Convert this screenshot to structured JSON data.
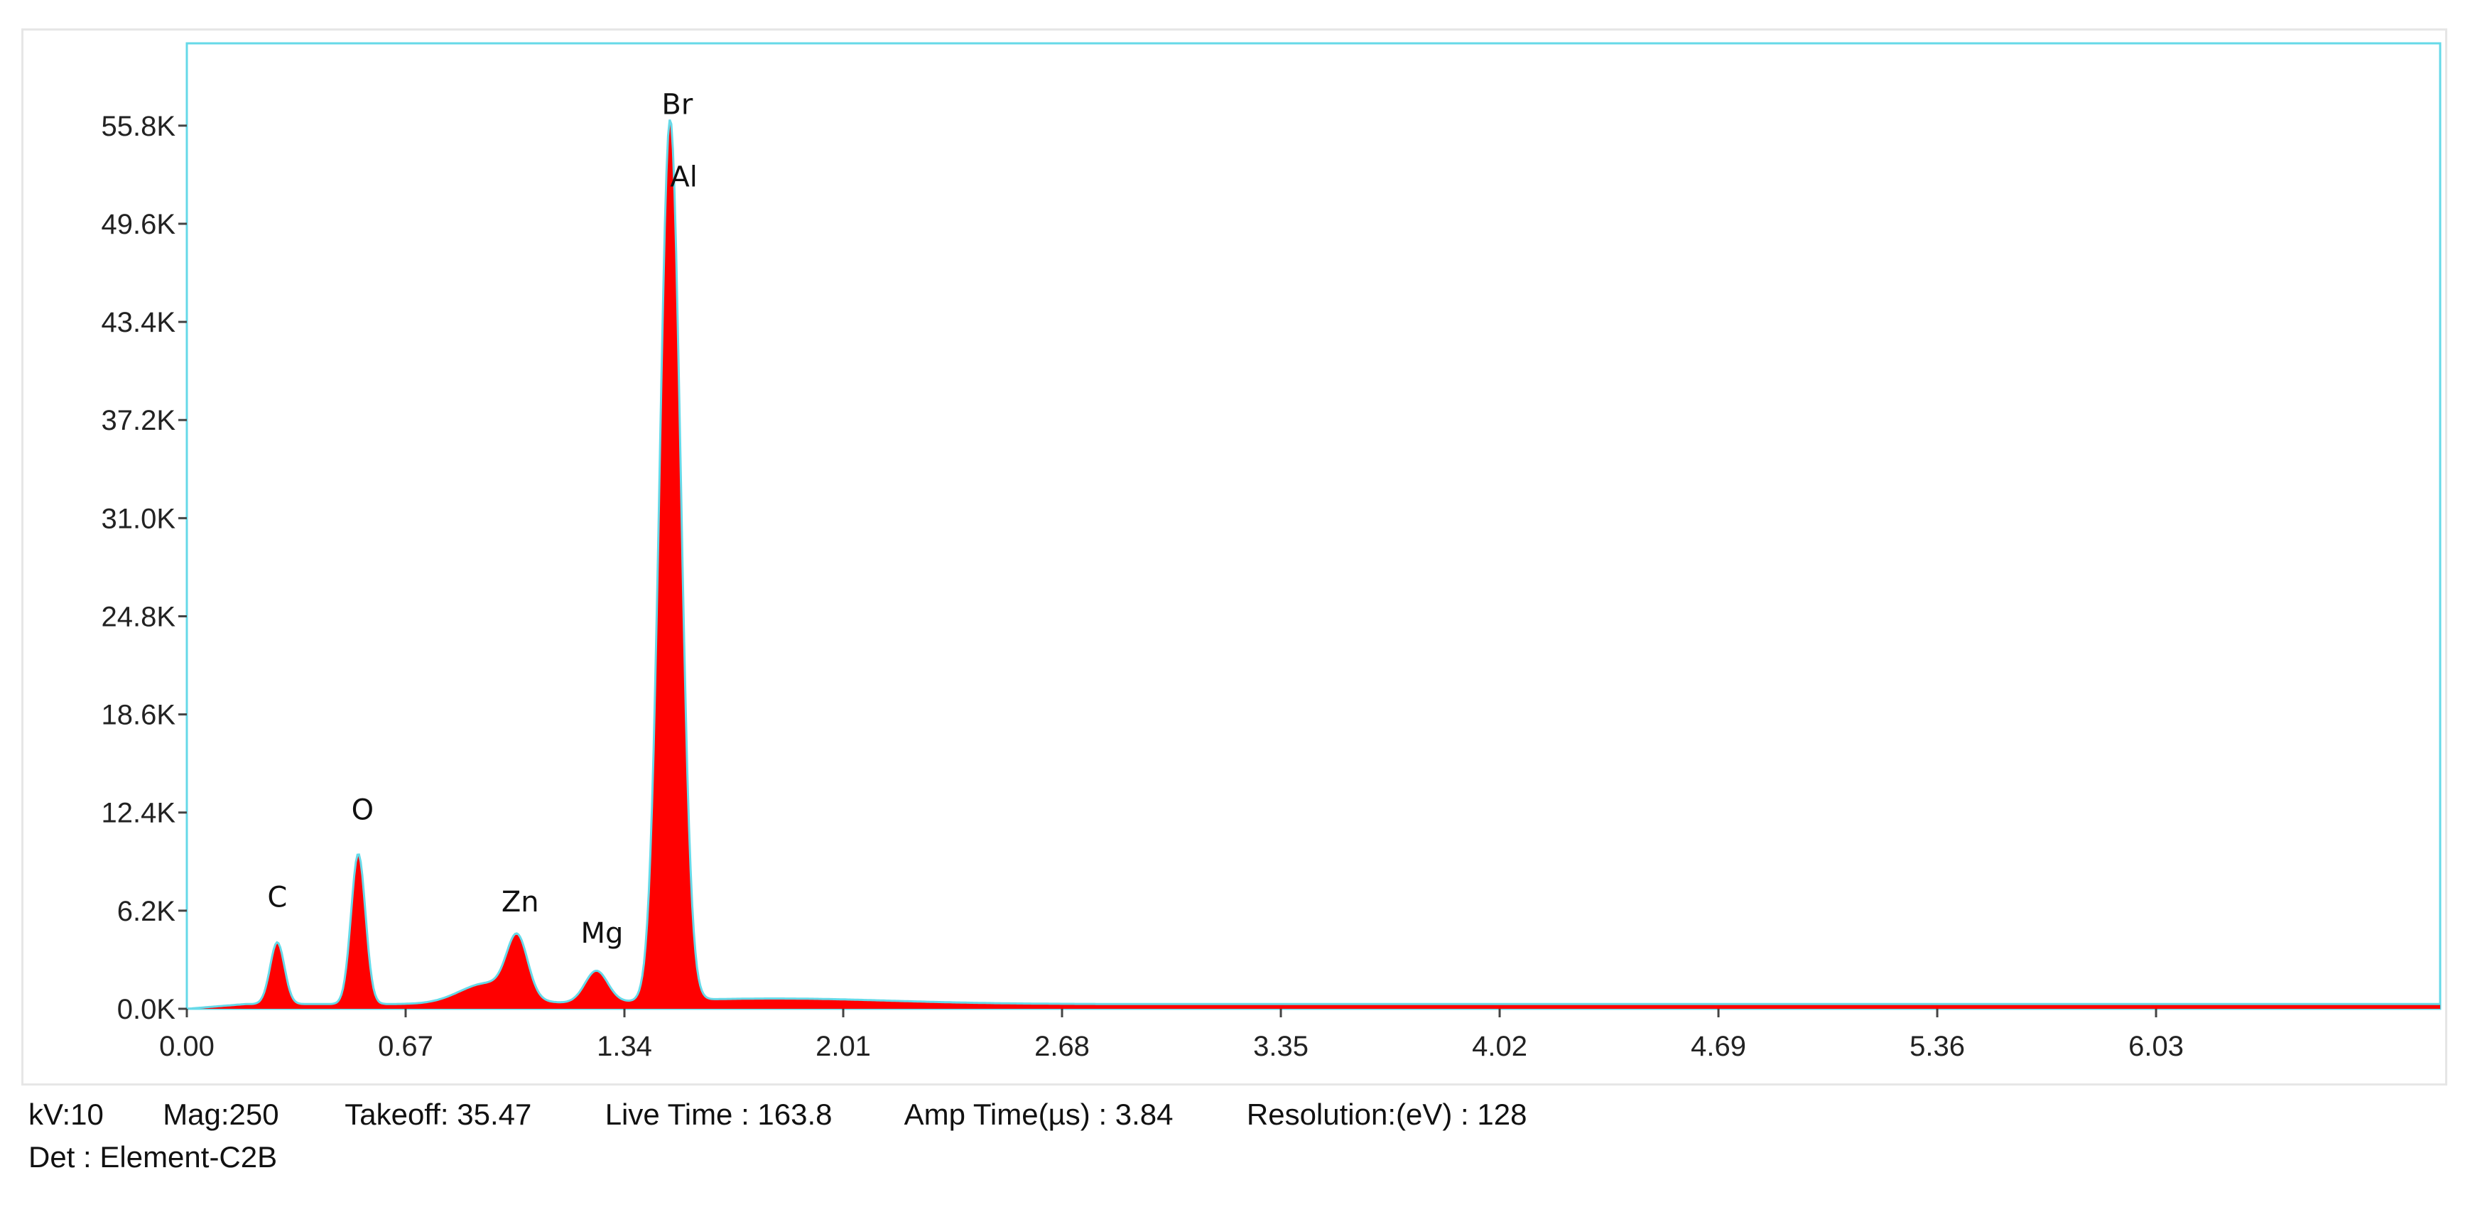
{
  "chart_data": {
    "type": "area",
    "title": "",
    "xlabel": "",
    "ylabel": "",
    "xlim": [
      0,
      6.9
    ],
    "ylim": [
      0,
      61000
    ],
    "x_ticks": [
      "0.00",
      "0.67",
      "1.34",
      "2.01",
      "2.68",
      "3.35",
      "4.02",
      "4.69",
      "5.36",
      "6.03"
    ],
    "x_tick_values": [
      0.0,
      0.67,
      1.34,
      2.01,
      2.68,
      3.35,
      4.02,
      4.69,
      5.36,
      6.03
    ],
    "y_ticks": [
      "0.0K",
      "6.2K",
      "12.4K",
      "18.6K",
      "24.8K",
      "31.0K",
      "37.2K",
      "43.4K",
      "49.6K",
      "55.8K"
    ],
    "y_tick_values": [
      0,
      6200,
      12400,
      18600,
      24800,
      31000,
      37200,
      43400,
      49600,
      55800
    ],
    "fill_color": "#ff0000",
    "outline_color": "#66d9e8",
    "baseline_counts": 300,
    "peaks": [
      {
        "label": "C",
        "x": 0.277,
        "y": 4200,
        "width": 0.022
      },
      {
        "label": "O",
        "x": 0.525,
        "y": 9800,
        "width": 0.022
      },
      {
        "label": "Zn",
        "x": 1.012,
        "y": 4000,
        "width": 0.032
      },
      {
        "label": "Mg",
        "x": 1.254,
        "y": 2300,
        "width": 0.035
      },
      {
        "label": "Br",
        "x": 1.48,
        "y": 56000,
        "width": 0.032
      },
      {
        "label": "Al",
        "x": 1.487,
        "y": 51500,
        "width": 0.032
      }
    ],
    "annotations": [
      "C",
      "O",
      "Zn",
      "Mg",
      "Br",
      "Al"
    ]
  },
  "metadata": {
    "line1": [
      "kV:10",
      "Mag:250",
      "Takeoff: 35.47",
      "Live Time : 163.8",
      "Amp Time(µs) : 3.84",
      "Resolution:(eV) : 128"
    ],
    "line2": "Det : Element-C2B"
  }
}
